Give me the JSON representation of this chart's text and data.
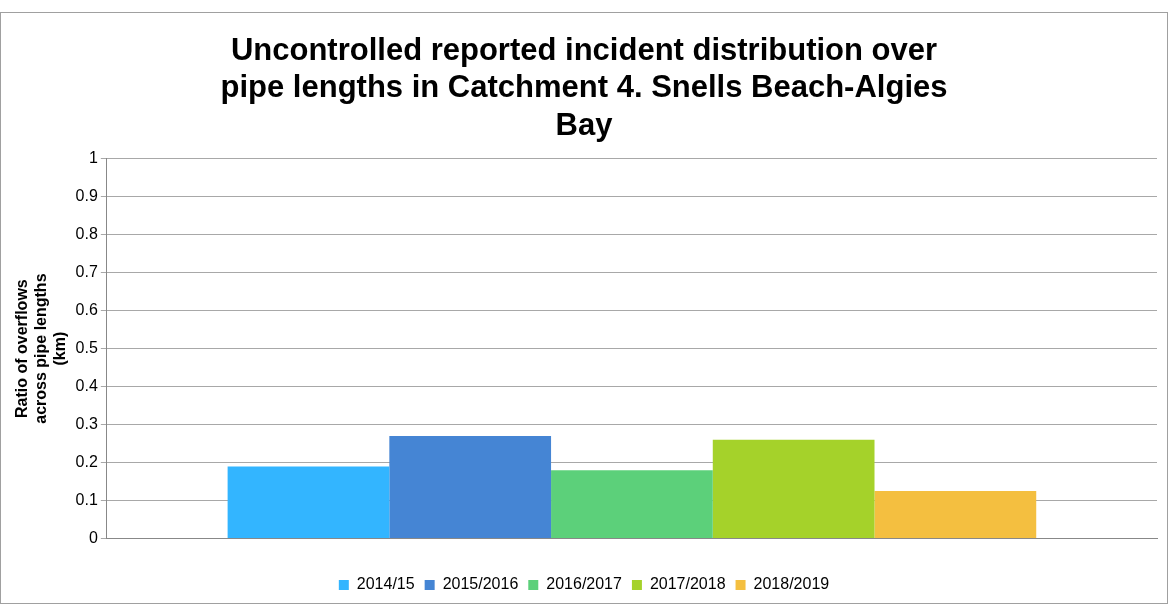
{
  "chart_data": {
    "type": "bar",
    "title": "Uncontrolled reported incident distribution over pipe lengths in Catchment 4. Snells Beach-Algies Bay",
    "ylabel": "Ratio of overflows across pipe lengths (km)",
    "categories": [
      null
    ],
    "series": [
      {
        "name": "2014/15",
        "color": "#33b5ff",
        "values": [
          0.19
        ]
      },
      {
        "name": "2015/2016",
        "color": "#4585d4",
        "values": [
          0.27
        ]
      },
      {
        "name": "2016/2017",
        "color": "#5cd07a",
        "values": [
          0.18
        ]
      },
      {
        "name": "2017/2018",
        "color": "#a5d22a",
        "values": [
          0.26
        ]
      },
      {
        "name": "2018/2019",
        "color": "#f4bf40",
        "values": [
          0.125
        ]
      }
    ],
    "ylim": [
      0,
      1
    ],
    "yticks": [
      0,
      0.1,
      0.2,
      0.3,
      0.4,
      0.5,
      0.6,
      0.7,
      0.8,
      0.9,
      1
    ],
    "grid": "y",
    "legend": "bottom"
  }
}
